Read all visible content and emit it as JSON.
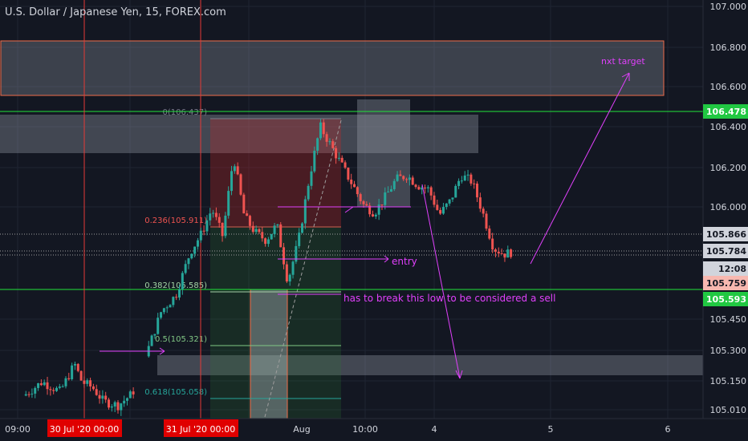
{
  "chart_data": {
    "type": "candlestick",
    "title": "U.S. Dollar / Japanese Yen, 15, FOREX.com",
    "colors": {
      "background": "#131722",
      "up": "#26a69a",
      "down": "#ef5350",
      "grid": "#1f2433",
      "axis_text": "#d1d4dc",
      "annotation": "#e040fb",
      "resistance": "#21e639",
      "session_line": "#e53935"
    },
    "y_axis": {
      "range": [
        104.99,
        107.03
      ],
      "ticks": [
        "107.000",
        "106.800",
        "106.600",
        "106.400",
        "106.200",
        "106.000",
        "105.450",
        "105.300",
        "105.150",
        "105.010"
      ],
      "markers": [
        {
          "label": "106.478",
          "bg": "#21c842",
          "fg": "#ffffff"
        },
        {
          "label": "105.866",
          "bg": "#d1d4dc",
          "fg": "#131722"
        },
        {
          "label": "105.784",
          "bg": "#d1d4dc",
          "fg": "#131722"
        },
        {
          "label": "12:08",
          "bg": "#d1d4dc",
          "fg": "#131722"
        },
        {
          "label": "105.759",
          "bg": "#f7b8b0",
          "fg": "#131722"
        },
        {
          "label": "105.593",
          "bg": "#21c842",
          "fg": "#ffffff"
        }
      ]
    },
    "x_axis": {
      "ticks": [
        "09:00",
        "Aug",
        "10:00",
        "4",
        "5",
        "6"
      ],
      "highlight_labels": [
        "30 Jul '20   00:00",
        "31 Jul '20   00:00"
      ]
    },
    "fib_levels": [
      {
        "label": "0(106.437)",
        "value": 106.437
      },
      {
        "label": "0.236(105.911)",
        "value": 105.911
      },
      {
        "label": "0.382(105.585)",
        "value": 105.585
      },
      {
        "label": "0.5(105.321)",
        "value": 105.321
      },
      {
        "label": "0.618(105.058)",
        "value": 105.058
      }
    ],
    "horizontal_lines": [
      {
        "name": "resistance",
        "value": 106.478
      },
      {
        "name": "support",
        "value": 105.593
      }
    ],
    "zones": [
      {
        "name": "target-zone",
        "from": 106.57,
        "to": 106.83
      },
      {
        "name": "upper-zone",
        "from": 106.27,
        "to": 106.45
      },
      {
        "name": "lower-zone",
        "from": 105.2,
        "to": 105.26
      }
    ],
    "annotations": [
      "nxt target",
      "entry",
      "has to break this low to be considered a sell"
    ],
    "price_path": [
      {
        "t": 0,
        "p": 105.05
      },
      {
        "t": 0.05,
        "p": 105.12
      },
      {
        "t": 0.1,
        "p": 105.07
      },
      {
        "t": 0.14,
        "p": 105.21
      },
      {
        "t": 0.16,
        "p": 105.12
      },
      {
        "t": 0.19,
        "p": 105.09
      },
      {
        "t": 0.22,
        "p": 105.02
      },
      {
        "t": 0.26,
        "p": 105.0
      },
      {
        "t": 0.3,
        "p": 105.06
      },
      {
        "t": 0.35,
        "p": 105.32
      },
      {
        "t": 0.38,
        "p": 105.48
      },
      {
        "t": 0.42,
        "p": 105.56
      },
      {
        "t": 0.46,
        "p": 105.78
      },
      {
        "t": 0.49,
        "p": 105.87
      },
      {
        "t": 0.52,
        "p": 106.0
      },
      {
        "t": 0.55,
        "p": 105.86
      },
      {
        "t": 0.58,
        "p": 106.27
      },
      {
        "t": 0.61,
        "p": 105.96
      },
      {
        "t": 0.64,
        "p": 105.88
      },
      {
        "t": 0.67,
        "p": 105.84
      },
      {
        "t": 0.7,
        "p": 105.92
      },
      {
        "t": 0.73,
        "p": 105.63
      },
      {
        "t": 0.76,
        "p": 105.84
      },
      {
        "t": 0.79,
        "p": 106.16
      },
      {
        "t": 0.82,
        "p": 106.42
      },
      {
        "t": 0.85,
        "p": 106.32
      },
      {
        "t": 0.88,
        "p": 106.22
      },
      {
        "t": 0.91,
        "p": 106.12
      },
      {
        "t": 0.94,
        "p": 106.02
      },
      {
        "t": 0.97,
        "p": 105.98
      },
      {
        "t": 1.0,
        "p": 106.06
      },
      {
        "t": 1.03,
        "p": 106.15
      },
      {
        "t": 1.06,
        "p": 106.17
      },
      {
        "t": 1.09,
        "p": 106.12
      },
      {
        "t": 1.12,
        "p": 106.1
      },
      {
        "t": 1.15,
        "p": 105.97
      },
      {
        "t": 1.18,
        "p": 106.04
      },
      {
        "t": 1.21,
        "p": 106.17
      },
      {
        "t": 1.24,
        "p": 106.14
      },
      {
        "t": 1.27,
        "p": 105.98
      },
      {
        "t": 1.3,
        "p": 105.8
      },
      {
        "t": 1.33,
        "p": 105.77
      },
      {
        "t": 1.35,
        "p": 105.78
      }
    ]
  }
}
